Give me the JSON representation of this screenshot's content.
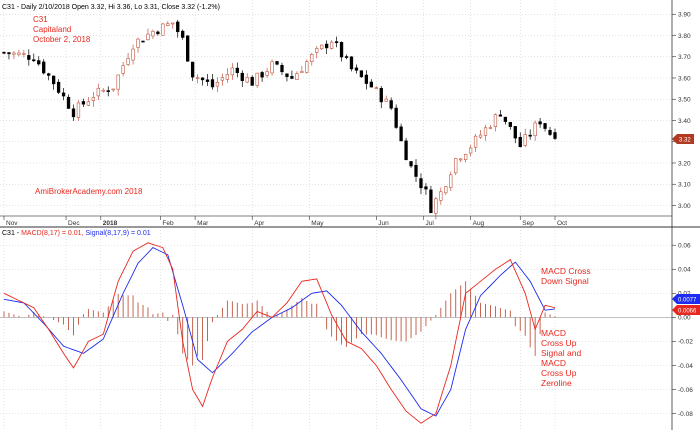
{
  "header": {
    "price_title": "C31 - Daily 2/10/2018 Open 3.32, Hi 3.36, Lo 3.31, Close 3.32 (-1.2%)",
    "macd_prefix": "C31 - ",
    "macd_label": "MACD(8,17) = 0.01,",
    "signal_label": "Signal(8,17,9) = 0.01"
  },
  "annotations": {
    "symbol": "C31",
    "company": "Capitaland",
    "date": "October 2, 2018",
    "watermark": "AmiBrokerAcademy.com  2018",
    "cross_down": [
      "MACD Cross",
      "Down Signal"
    ],
    "cross_up": [
      "MACD",
      "Cross Up",
      "Signal and",
      "MACD",
      "Cross Up",
      "Zeroline"
    ]
  },
  "colors": {
    "up_candle": "#c0553f",
    "down_candle": "#000000",
    "macd_line": "#e8281e",
    "signal_line": "#1e2bf0",
    "histogram": "#c0553f",
    "grid": "#c8c8c8",
    "price_badge": "#b03a22",
    "macd_badge": "#1e2bf0",
    "signal_badge": "#e8281e"
  },
  "chart_data": [
    {
      "type": "candlestick",
      "title": "C31 - Daily 2/10/2018 Open 3.32, Hi 3.36, Lo 3.31, Close 3.32 (-1.2%)",
      "x_labels": [
        "Nov",
        "Dec",
        "2018",
        "Feb",
        "Mar",
        "Apr",
        "May",
        "Jun",
        "Jul",
        "Aug",
        "Sep",
        "Oct"
      ],
      "y_ticks": [
        3.0,
        3.1,
        3.2,
        3.3,
        3.4,
        3.5,
        3.6,
        3.7,
        3.8,
        3.9
      ],
      "ylim": [
        2.96,
        3.92
      ],
      "last_close": "3.32",
      "close_path": [
        {
          "x": 0,
          "y": 3.72
        },
        {
          "x": 6,
          "y": 3.7
        },
        {
          "x": 10,
          "y": 3.58
        },
        {
          "x": 14,
          "y": 3.44
        },
        {
          "x": 18,
          "y": 3.52
        },
        {
          "x": 22,
          "y": 3.56
        },
        {
          "x": 26,
          "y": 3.76
        },
        {
          "x": 30,
          "y": 3.82
        },
        {
          "x": 34,
          "y": 3.86
        },
        {
          "x": 36,
          "y": 3.78
        },
        {
          "x": 38,
          "y": 3.62
        },
        {
          "x": 42,
          "y": 3.56
        },
        {
          "x": 46,
          "y": 3.64
        },
        {
          "x": 50,
          "y": 3.58
        },
        {
          "x": 54,
          "y": 3.66
        },
        {
          "x": 58,
          "y": 3.6
        },
        {
          "x": 62,
          "y": 3.7
        },
        {
          "x": 66,
          "y": 3.78
        },
        {
          "x": 70,
          "y": 3.64
        },
        {
          "x": 74,
          "y": 3.56
        },
        {
          "x": 78,
          "y": 3.46
        },
        {
          "x": 80,
          "y": 3.3
        },
        {
          "x": 82,
          "y": 3.18
        },
        {
          "x": 85,
          "y": 3.06
        },
        {
          "x": 86,
          "y": 2.99
        },
        {
          "x": 88,
          "y": 3.06
        },
        {
          "x": 91,
          "y": 3.22
        },
        {
          "x": 94,
          "y": 3.28
        },
        {
          "x": 97,
          "y": 3.36
        },
        {
          "x": 100,
          "y": 3.44
        },
        {
          "x": 102,
          "y": 3.36
        },
        {
          "x": 104,
          "y": 3.28
        },
        {
          "x": 106,
          "y": 3.34
        },
        {
          "x": 108,
          "y": 3.4
        },
        {
          "x": 110,
          "y": 3.34
        }
      ]
    },
    {
      "type": "line",
      "title": "C31 - MACD(8,17) = 0.01, Signal(8,17,9) = 0.01",
      "y_ticks": [
        -0.08,
        -0.06,
        -0.04,
        -0.02,
        0.0,
        0.02,
        0.04,
        0.06
      ],
      "ylim": [
        -0.092,
        0.066
      ],
      "last_values": {
        "macd": "0.0077",
        "signal": "0.0066"
      },
      "series": [
        {
          "name": "MACD(8,17)",
          "points": [
            {
              "x": 0,
              "y": 0.02
            },
            {
              "x": 3,
              "y": 0.014
            },
            {
              "x": 6,
              "y": 0.008
            },
            {
              "x": 9,
              "y": -0.01
            },
            {
              "x": 12,
              "y": -0.03
            },
            {
              "x": 14,
              "y": -0.042
            },
            {
              "x": 17,
              "y": -0.02
            },
            {
              "x": 20,
              "y": -0.014
            },
            {
              "x": 23,
              "y": 0.03
            },
            {
              "x": 26,
              "y": 0.055
            },
            {
              "x": 29,
              "y": 0.062
            },
            {
              "x": 32,
              "y": 0.058
            },
            {
              "x": 34,
              "y": 0.04
            },
            {
              "x": 36,
              "y": -0.02
            },
            {
              "x": 38,
              "y": -0.06
            },
            {
              "x": 40,
              "y": -0.074
            },
            {
              "x": 42,
              "y": -0.05
            },
            {
              "x": 45,
              "y": -0.02
            },
            {
              "x": 48,
              "y": -0.01
            },
            {
              "x": 51,
              "y": 0.005
            },
            {
              "x": 54,
              "y": 0.0
            },
            {
              "x": 57,
              "y": 0.012
            },
            {
              "x": 60,
              "y": 0.03
            },
            {
              "x": 63,
              "y": 0.032
            },
            {
              "x": 66,
              "y": 0.002
            },
            {
              "x": 69,
              "y": -0.02
            },
            {
              "x": 72,
              "y": -0.026
            },
            {
              "x": 75,
              "y": -0.04
            },
            {
              "x": 78,
              "y": -0.06
            },
            {
              "x": 81,
              "y": -0.078
            },
            {
              "x": 84,
              "y": -0.088
            },
            {
              "x": 87,
              "y": -0.08
            },
            {
              "x": 90,
              "y": -0.04
            },
            {
              "x": 93,
              "y": 0.02
            },
            {
              "x": 96,
              "y": 0.03
            },
            {
              "x": 99,
              "y": 0.04
            },
            {
              "x": 102,
              "y": 0.048
            },
            {
              "x": 105,
              "y": 0.02
            },
            {
              "x": 107,
              "y": -0.01
            },
            {
              "x": 109,
              "y": 0.01
            },
            {
              "x": 111,
              "y": 0.008
            }
          ]
        },
        {
          "name": "Signal(8,17,9)",
          "points": [
            {
              "x": 0,
              "y": 0.015
            },
            {
              "x": 4,
              "y": 0.012
            },
            {
              "x": 8,
              "y": -0.005
            },
            {
              "x": 12,
              "y": -0.024
            },
            {
              "x": 16,
              "y": -0.03
            },
            {
              "x": 20,
              "y": -0.018
            },
            {
              "x": 24,
              "y": 0.02
            },
            {
              "x": 27,
              "y": 0.045
            },
            {
              "x": 30,
              "y": 0.058
            },
            {
              "x": 33,
              "y": 0.052
            },
            {
              "x": 36,
              "y": 0.01
            },
            {
              "x": 39,
              "y": -0.035
            },
            {
              "x": 42,
              "y": -0.046
            },
            {
              "x": 46,
              "y": -0.03
            },
            {
              "x": 50,
              "y": -0.012
            },
            {
              "x": 54,
              "y": 0.0
            },
            {
              "x": 58,
              "y": 0.008
            },
            {
              "x": 62,
              "y": 0.02
            },
            {
              "x": 65,
              "y": 0.022
            },
            {
              "x": 68,
              "y": 0.01
            },
            {
              "x": 72,
              "y": -0.012
            },
            {
              "x": 76,
              "y": -0.03
            },
            {
              "x": 80,
              "y": -0.052
            },
            {
              "x": 84,
              "y": -0.076
            },
            {
              "x": 87,
              "y": -0.082
            },
            {
              "x": 90,
              "y": -0.06
            },
            {
              "x": 93,
              "y": -0.01
            },
            {
              "x": 96,
              "y": 0.018
            },
            {
              "x": 100,
              "y": 0.035
            },
            {
              "x": 103,
              "y": 0.046
            },
            {
              "x": 106,
              "y": 0.03
            },
            {
              "x": 109,
              "y": 0.006
            },
            {
              "x": 111,
              "y": 0.007
            }
          ]
        }
      ]
    }
  ]
}
